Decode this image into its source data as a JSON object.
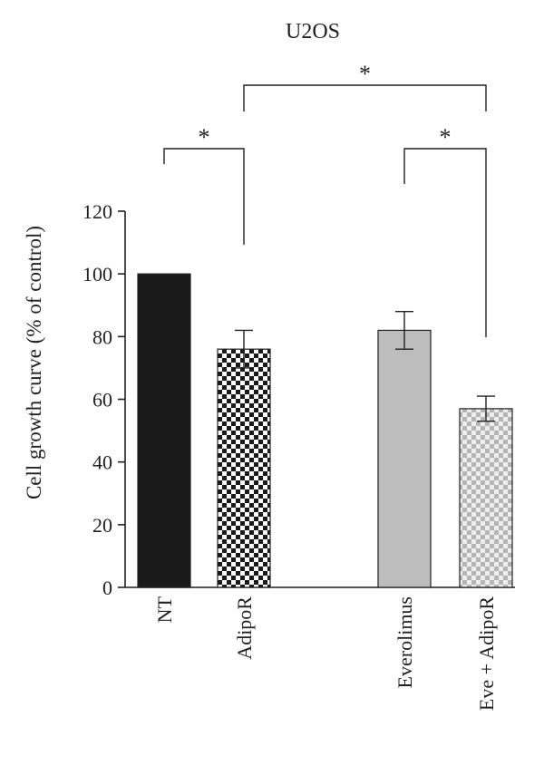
{
  "chart_data": {
    "type": "bar",
    "title": "U2OS",
    "ylabel": "Cell growth curve (% of control)",
    "xlabel": "",
    "categories": [
      "NT",
      "AdipoR",
      "Everolimus",
      "Eve + AdipoR"
    ],
    "values": [
      100,
      76,
      82,
      57
    ],
    "errors": [
      0,
      6,
      6,
      4
    ],
    "ylim": [
      0,
      120
    ],
    "yticks": [
      0,
      20,
      40,
      60,
      80,
      100,
      120
    ],
    "bar_styles": [
      {
        "fill": "#1a1a1a",
        "pattern": "solid"
      },
      {
        "fill": "#1a1a1a",
        "pattern": "checker-dark"
      },
      {
        "fill": "#bdbdbd",
        "pattern": "solid"
      },
      {
        "fill": "#bdbdbd",
        "pattern": "checker-light"
      }
    ],
    "significance": [
      {
        "from": "NT",
        "to": "AdipoR",
        "label": "*"
      },
      {
        "from": "Everolimus",
        "to": "Eve + AdipoR",
        "label": "*"
      },
      {
        "from": "AdipoR",
        "to": "Eve + AdipoR",
        "label": "*"
      }
    ],
    "grid": false,
    "legend": "none"
  }
}
